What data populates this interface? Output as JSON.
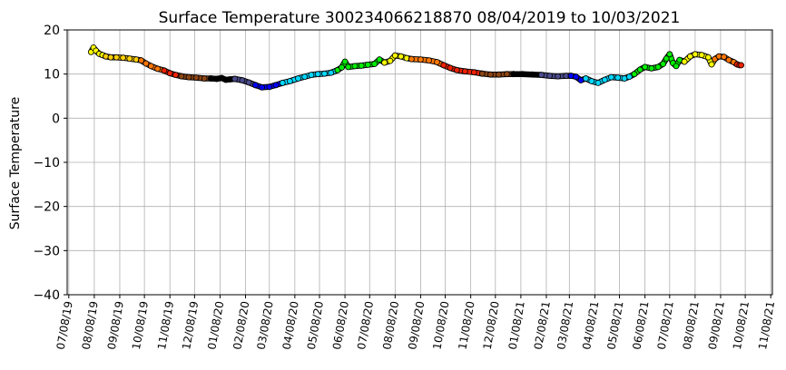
{
  "chart_data": {
    "type": "scatter",
    "title": "Surface Temperature 300234066218870  08/04/2019 to 10/03/2021",
    "ylabel": "Surface Temperature",
    "xlabel": "",
    "ylim": [
      -40,
      20
    ],
    "yticks": [
      -40,
      -30,
      -20,
      -10,
      0,
      10,
      20
    ],
    "xlim": [
      "2019-07-06",
      "2021-11-10"
    ],
    "xticks": [
      {
        "date": "2019-07-08",
        "label": "07/08/19"
      },
      {
        "date": "2019-08-08",
        "label": "08/08/19"
      },
      {
        "date": "2019-09-08",
        "label": "09/08/19"
      },
      {
        "date": "2019-10-08",
        "label": "10/08/19"
      },
      {
        "date": "2019-11-08",
        "label": "11/08/19"
      },
      {
        "date": "2019-12-08",
        "label": "12/08/19"
      },
      {
        "date": "2020-01-08",
        "label": "01/08/20"
      },
      {
        "date": "2020-02-08",
        "label": "02/08/20"
      },
      {
        "date": "2020-03-08",
        "label": "03/08/20"
      },
      {
        "date": "2020-04-08",
        "label": "04/08/20"
      },
      {
        "date": "2020-05-08",
        "label": "05/08/20"
      },
      {
        "date": "2020-06-08",
        "label": "06/08/20"
      },
      {
        "date": "2020-07-08",
        "label": "07/08/20"
      },
      {
        "date": "2020-08-08",
        "label": "08/08/20"
      },
      {
        "date": "2020-09-08",
        "label": "09/08/20"
      },
      {
        "date": "2020-10-08",
        "label": "10/08/20"
      },
      {
        "date": "2020-11-08",
        "label": "11/08/20"
      },
      {
        "date": "2020-12-08",
        "label": "12/08/20"
      },
      {
        "date": "2021-01-08",
        "label": "01/08/21"
      },
      {
        "date": "2021-02-08",
        "label": "02/08/21"
      },
      {
        "date": "2021-03-08",
        "label": "03/08/21"
      },
      {
        "date": "2021-04-08",
        "label": "04/08/21"
      },
      {
        "date": "2021-05-08",
        "label": "05/08/21"
      },
      {
        "date": "2021-06-08",
        "label": "06/08/21"
      },
      {
        "date": "2021-07-08",
        "label": "07/08/21"
      },
      {
        "date": "2021-08-08",
        "label": "08/08/21"
      },
      {
        "date": "2021-09-08",
        "label": "09/08/21"
      },
      {
        "date": "2021-10-08",
        "label": "10/08/21"
      },
      {
        "date": "2021-11-08",
        "label": "11/08/21"
      }
    ],
    "grid": true,
    "marker_edge_color": "#000000",
    "series": [
      {
        "color": "#ffff00",
        "points": [
          [
            "2019-08-04",
            15.0
          ],
          [
            "2019-08-07",
            16.0
          ],
          [
            "2019-08-10",
            15.3
          ],
          [
            "2019-08-14",
            14.6
          ],
          [
            "2019-08-18",
            14.3
          ],
          [
            "2019-08-22",
            14.0
          ]
        ]
      },
      {
        "color": "#ffd000",
        "points": [
          [
            "2019-08-22",
            14.0
          ],
          [
            "2019-08-28",
            13.8
          ],
          [
            "2019-09-04",
            13.8
          ],
          [
            "2019-09-12",
            13.7
          ],
          [
            "2019-09-20",
            13.5
          ],
          [
            "2019-09-28",
            13.3
          ],
          [
            "2019-10-04",
            13.1
          ]
        ]
      },
      {
        "color": "#ff7700",
        "points": [
          [
            "2019-10-04",
            13.1
          ],
          [
            "2019-10-10",
            12.4
          ],
          [
            "2019-10-16",
            11.8
          ],
          [
            "2019-10-24",
            11.2
          ],
          [
            "2019-11-01",
            10.8
          ]
        ]
      },
      {
        "color": "#ee2200",
        "points": [
          [
            "2019-11-01",
            10.8
          ],
          [
            "2019-11-08",
            10.2
          ],
          [
            "2019-11-15",
            9.8
          ],
          [
            "2019-11-22",
            9.5
          ]
        ]
      },
      {
        "color": "#8b4513",
        "points": [
          [
            "2019-11-22",
            9.5
          ],
          [
            "2019-12-01",
            9.3
          ],
          [
            "2019-12-10",
            9.2
          ],
          [
            "2019-12-20",
            9.0
          ],
          [
            "2019-12-28",
            9.0
          ]
        ]
      },
      {
        "color": "#000000",
        "points": [
          [
            "2019-12-28",
            9.0
          ],
          [
            "2020-01-04",
            8.9
          ],
          [
            "2020-01-10",
            9.1
          ],
          [
            "2020-01-15",
            8.7
          ],
          [
            "2020-01-20",
            8.8
          ],
          [
            "2020-01-26",
            8.9
          ]
        ]
      },
      {
        "color": "#4b4b8c",
        "points": [
          [
            "2020-01-26",
            8.9
          ],
          [
            "2020-02-04",
            8.6
          ],
          [
            "2020-02-12",
            8.1
          ],
          [
            "2020-02-20",
            7.5
          ]
        ]
      },
      {
        "color": "#0000ff",
        "points": [
          [
            "2020-02-20",
            7.5
          ],
          [
            "2020-02-28",
            7.0
          ],
          [
            "2020-03-08",
            7.1
          ],
          [
            "2020-03-16",
            7.5
          ],
          [
            "2020-03-24",
            8.0
          ]
        ]
      },
      {
        "color": "#00d8ff",
        "points": [
          [
            "2020-03-24",
            8.0
          ],
          [
            "2020-04-02",
            8.4
          ],
          [
            "2020-04-12",
            9.0
          ],
          [
            "2020-04-20",
            9.4
          ],
          [
            "2020-04-28",
            9.8
          ],
          [
            "2020-05-06",
            10.0
          ],
          [
            "2020-05-14",
            10.1
          ],
          [
            "2020-05-22",
            10.3
          ],
          [
            "2020-05-30",
            10.9
          ]
        ]
      },
      {
        "color": "#00ee00",
        "points": [
          [
            "2020-05-30",
            10.9
          ],
          [
            "2020-06-04",
            11.5
          ],
          [
            "2020-06-08",
            12.8
          ],
          [
            "2020-06-12",
            11.6
          ],
          [
            "2020-06-20",
            11.8
          ],
          [
            "2020-06-28",
            11.9
          ],
          [
            "2020-07-06",
            12.1
          ],
          [
            "2020-07-14",
            12.3
          ],
          [
            "2020-07-20",
            13.3
          ],
          [
            "2020-07-26",
            12.6
          ]
        ]
      },
      {
        "color": "#ffff00",
        "points": [
          [
            "2020-07-26",
            12.6
          ],
          [
            "2020-08-02",
            13.0
          ],
          [
            "2020-08-08",
            14.2
          ],
          [
            "2020-08-15",
            14.0
          ],
          [
            "2020-08-22",
            13.6
          ],
          [
            "2020-08-28",
            13.4
          ]
        ]
      },
      {
        "color": "#ff7700",
        "points": [
          [
            "2020-08-28",
            13.4
          ],
          [
            "2020-09-08",
            13.3
          ],
          [
            "2020-09-18",
            13.1
          ],
          [
            "2020-09-28",
            12.7
          ],
          [
            "2020-10-06",
            12.0
          ]
        ]
      },
      {
        "color": "#ee2200",
        "points": [
          [
            "2020-10-06",
            12.0
          ],
          [
            "2020-10-14",
            11.4
          ],
          [
            "2020-10-22",
            10.9
          ],
          [
            "2020-11-01",
            10.6
          ],
          [
            "2020-11-12",
            10.4
          ],
          [
            "2020-11-22",
            10.1
          ]
        ]
      },
      {
        "color": "#8b4513",
        "points": [
          [
            "2020-11-22",
            10.1
          ],
          [
            "2020-12-02",
            9.9
          ],
          [
            "2020-12-12",
            9.9
          ],
          [
            "2020-12-22",
            10.0
          ],
          [
            "2020-12-30",
            10.0
          ]
        ]
      },
      {
        "color": "#000000",
        "points": [
          [
            "2020-12-30",
            10.0
          ],
          [
            "2021-01-10",
            10.0
          ],
          [
            "2021-01-22",
            9.9
          ],
          [
            "2021-02-02",
            9.8
          ]
        ]
      },
      {
        "color": "#4b4b8c",
        "points": [
          [
            "2021-02-02",
            9.8
          ],
          [
            "2021-02-12",
            9.6
          ],
          [
            "2021-02-22",
            9.5
          ],
          [
            "2021-03-04",
            9.6
          ],
          [
            "2021-03-10",
            9.6
          ]
        ]
      },
      {
        "color": "#0000ff",
        "points": [
          [
            "2021-03-10",
            9.6
          ],
          [
            "2021-03-16",
            9.4
          ],
          [
            "2021-03-22",
            8.6
          ],
          [
            "2021-03-28",
            9.0
          ]
        ]
      },
      {
        "color": "#00d8ff",
        "points": [
          [
            "2021-03-28",
            9.0
          ],
          [
            "2021-04-04",
            8.4
          ],
          [
            "2021-04-12",
            8.0
          ],
          [
            "2021-04-20",
            8.7
          ],
          [
            "2021-04-28",
            9.3
          ],
          [
            "2021-05-06",
            9.2
          ],
          [
            "2021-05-14",
            9.0
          ],
          [
            "2021-05-20",
            9.4
          ],
          [
            "2021-05-26",
            10.0
          ]
        ]
      },
      {
        "color": "#00ee00",
        "points": [
          [
            "2021-05-26",
            10.0
          ],
          [
            "2021-06-02",
            11.0
          ],
          [
            "2021-06-08",
            11.6
          ],
          [
            "2021-06-16",
            11.3
          ],
          [
            "2021-06-24",
            11.6
          ],
          [
            "2021-06-30",
            12.3
          ],
          [
            "2021-07-04",
            13.5
          ],
          [
            "2021-07-08",
            14.5
          ],
          [
            "2021-07-12",
            12.5
          ],
          [
            "2021-07-16",
            11.8
          ],
          [
            "2021-07-20",
            13.2
          ],
          [
            "2021-07-26",
            12.8
          ]
        ]
      },
      {
        "color": "#ffff00",
        "points": [
          [
            "2021-07-26",
            12.8
          ],
          [
            "2021-08-02",
            14.0
          ],
          [
            "2021-08-08",
            14.5
          ],
          [
            "2021-08-16",
            14.3
          ],
          [
            "2021-08-24",
            13.8
          ],
          [
            "2021-08-28",
            12.2
          ],
          [
            "2021-09-01",
            13.4
          ]
        ]
      },
      {
        "color": "#ff7700",
        "points": [
          [
            "2021-09-01",
            13.4
          ],
          [
            "2021-09-06",
            14.0
          ],
          [
            "2021-09-12",
            13.9
          ],
          [
            "2021-09-18",
            13.2
          ],
          [
            "2021-09-24",
            12.7
          ],
          [
            "2021-09-28",
            12.2
          ]
        ]
      },
      {
        "color": "#ee2200",
        "points": [
          [
            "2021-09-28",
            12.2
          ],
          [
            "2021-10-01",
            12.0
          ],
          [
            "2021-10-03",
            12.0
          ]
        ]
      }
    ]
  }
}
